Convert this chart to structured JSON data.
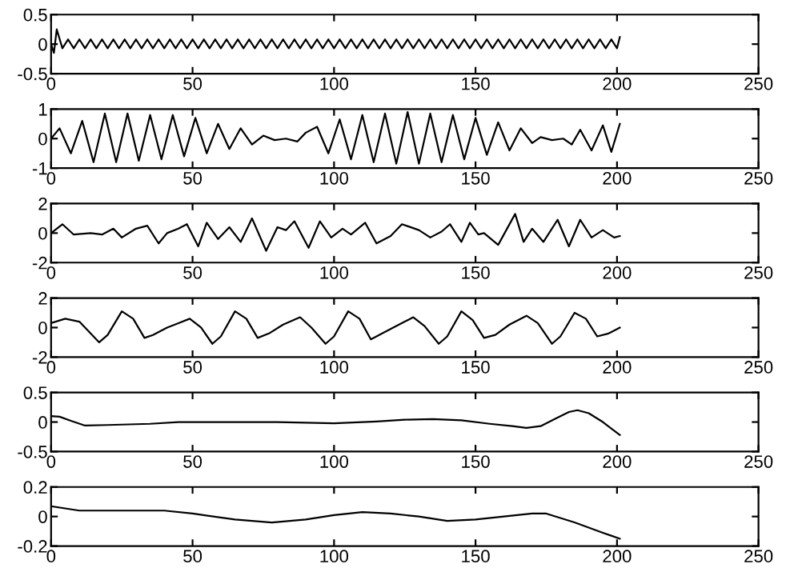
{
  "chart_data": [
    {
      "type": "line",
      "xlim": [
        0,
        250
      ],
      "xticks": [
        0,
        50,
        100,
        150,
        200,
        250
      ],
      "ylim": [
        -0.5,
        0.5
      ],
      "yticks": [
        -0.5,
        0,
        0.5
      ],
      "series": [
        {
          "color": "#000000",
          "x": [
            0,
            1,
            2,
            4,
            6,
            8,
            10,
            12,
            14,
            16,
            18,
            20,
            22,
            24,
            26,
            28,
            30,
            32,
            34,
            36,
            38,
            40,
            42,
            44,
            46,
            48,
            50,
            52,
            54,
            56,
            58,
            60,
            62,
            64,
            66,
            68,
            70,
            72,
            74,
            76,
            78,
            80,
            82,
            84,
            86,
            88,
            90,
            92,
            94,
            96,
            98,
            100,
            102,
            104,
            106,
            108,
            110,
            112,
            114,
            116,
            118,
            120,
            122,
            124,
            126,
            128,
            130,
            132,
            134,
            136,
            138,
            140,
            142,
            144,
            146,
            148,
            150,
            152,
            154,
            156,
            158,
            160,
            162,
            164,
            166,
            168,
            170,
            172,
            174,
            176,
            178,
            180,
            182,
            184,
            186,
            188,
            190,
            192,
            194,
            196,
            198,
            200,
            201
          ],
          "values": [
            0,
            -0.15,
            0.25,
            -0.07,
            0.08,
            -0.07,
            0.08,
            -0.07,
            0.08,
            -0.07,
            0.08,
            -0.07,
            0.08,
            -0.07,
            0.08,
            -0.07,
            0.08,
            -0.07,
            0.08,
            -0.07,
            0.08,
            -0.07,
            0.08,
            -0.07,
            0.08,
            -0.07,
            0.08,
            -0.07,
            0.08,
            -0.07,
            0.08,
            -0.07,
            0.08,
            -0.07,
            0.08,
            -0.07,
            0.08,
            -0.07,
            0.08,
            -0.07,
            0.08,
            -0.07,
            0.08,
            -0.07,
            0.08,
            -0.07,
            0.08,
            -0.07,
            0.08,
            -0.07,
            0.08,
            -0.07,
            0.08,
            -0.07,
            0.08,
            -0.07,
            0.08,
            -0.07,
            0.08,
            -0.07,
            0.08,
            -0.07,
            0.08,
            -0.07,
            0.08,
            -0.07,
            0.08,
            -0.07,
            0.08,
            -0.07,
            0.08,
            -0.07,
            0.08,
            -0.07,
            0.08,
            -0.07,
            0.08,
            -0.07,
            0.08,
            -0.07,
            0.08,
            -0.07,
            0.08,
            -0.07,
            0.08,
            -0.07,
            0.08,
            -0.07,
            0.08,
            -0.07,
            0.08,
            -0.07,
            0.08,
            -0.07,
            0.08,
            -0.07,
            0.08,
            -0.07,
            0.08,
            -0.07,
            0.08,
            -0.07,
            0.12
          ]
        }
      ]
    },
    {
      "type": "line",
      "xlim": [
        0,
        250
      ],
      "xticks": [
        0,
        50,
        100,
        150,
        200,
        250
      ],
      "ylim": [
        -1,
        1
      ],
      "yticks": [
        -1,
        0,
        1
      ],
      "series": [
        {
          "color": "#000000",
          "x": [
            0,
            3,
            7,
            11,
            15,
            19,
            23,
            27,
            31,
            35,
            39,
            43,
            47,
            51,
            55,
            59,
            63,
            67,
            71,
            75,
            79,
            83,
            87,
            90,
            94,
            98,
            102,
            106,
            110,
            114,
            118,
            122,
            126,
            130,
            134,
            138,
            142,
            146,
            150,
            154,
            158,
            162,
            166,
            170,
            173,
            177,
            181,
            184,
            187,
            191,
            195,
            198,
            201
          ],
          "values": [
            0,
            0.35,
            -0.5,
            0.6,
            -0.8,
            0.85,
            -0.8,
            0.85,
            -0.75,
            0.8,
            -0.7,
            0.8,
            -0.6,
            0.7,
            -0.5,
            0.5,
            -0.35,
            0.35,
            -0.2,
            0.1,
            -0.05,
            0,
            -0.1,
            0.2,
            0.4,
            -0.5,
            0.65,
            -0.7,
            0.8,
            -0.8,
            0.85,
            -0.85,
            0.9,
            -0.85,
            0.85,
            -0.8,
            0.8,
            -0.7,
            0.7,
            -0.55,
            0.55,
            -0.4,
            0.35,
            -0.15,
            0.05,
            -0.05,
            0,
            -0.2,
            0.3,
            -0.4,
            0.45,
            -0.45,
            0.5
          ]
        }
      ]
    },
    {
      "type": "line",
      "xlim": [
        0,
        250
      ],
      "xticks": [
        0,
        50,
        100,
        150,
        200,
        250
      ],
      "ylim": [
        -2,
        2
      ],
      "yticks": [
        -2,
        0,
        2
      ],
      "series": [
        {
          "color": "#000000",
          "x": [
            0,
            4,
            8,
            14,
            18,
            22,
            25,
            30,
            34,
            38,
            41,
            45,
            48,
            52,
            55,
            59,
            63,
            67,
            71,
            76,
            80,
            83,
            86,
            91,
            95,
            99,
            103,
            106,
            111,
            115,
            120,
            124,
            130,
            134,
            138,
            141,
            145,
            148,
            151,
            153,
            158,
            164,
            167,
            170,
            174,
            179,
            183,
            187,
            191,
            195,
            199,
            201
          ],
          "values": [
            0,
            0.6,
            -0.1,
            0,
            -0.1,
            0.3,
            -0.3,
            0.3,
            0.5,
            -0.7,
            0,
            0.3,
            0.6,
            -0.9,
            0.7,
            -0.4,
            0.4,
            -0.6,
            1.0,
            -1.2,
            0.4,
            0.2,
            0.8,
            -1.0,
            0.8,
            -0.3,
            0.3,
            -0.1,
            0.7,
            -0.7,
            -0.2,
            0.6,
            0.2,
            -0.3,
            0.1,
            0.6,
            -0.6,
            0.7,
            -0.1,
            0,
            -0.8,
            1.3,
            -0.6,
            0.3,
            -0.6,
            0.9,
            -0.9,
            0.9,
            -0.3,
            0.2,
            -0.3,
            -0.2
          ]
        }
      ]
    },
    {
      "type": "line",
      "xlim": [
        0,
        250
      ],
      "xticks": [
        0,
        50,
        100,
        150,
        200,
        250
      ],
      "ylim": [
        -2,
        2
      ],
      "yticks": [
        -2,
        0,
        2
      ],
      "series": [
        {
          "color": "#000000",
          "x": [
            0,
            5,
            10,
            17,
            20,
            25,
            29,
            33,
            36,
            41,
            45,
            49,
            53,
            57,
            60,
            65,
            69,
            73,
            77,
            82,
            88,
            92,
            97,
            100,
            105,
            109,
            113,
            117,
            122,
            128,
            132,
            137,
            140,
            145,
            149,
            153,
            157,
            162,
            168,
            172,
            177,
            180,
            185,
            189,
            193,
            197,
            201
          ],
          "values": [
            0.3,
            0.6,
            0.4,
            -1.0,
            -0.5,
            1.1,
            0.6,
            -0.7,
            -0.5,
            0,
            0.3,
            0.6,
            0,
            -1.1,
            -0.6,
            1.1,
            0.6,
            -0.7,
            -0.4,
            0.2,
            0.7,
            0,
            -1.1,
            -0.6,
            1.1,
            0.6,
            -0.8,
            -0.4,
            0.1,
            0.7,
            0.1,
            -1.1,
            -0.6,
            1.1,
            0.5,
            -0.7,
            -0.5,
            0.2,
            0.8,
            0.3,
            -1.1,
            -0.6,
            1.0,
            0.6,
            -0.6,
            -0.4,
            0
          ]
        }
      ]
    },
    {
      "type": "line",
      "xlim": [
        0,
        250
      ],
      "xticks": [
        0,
        50,
        100,
        150,
        200,
        250
      ],
      "ylim": [
        -0.5,
        0.5
      ],
      "yticks": [
        -0.5,
        0,
        0.5
      ],
      "series": [
        {
          "color": "#000000",
          "x": [
            0,
            3,
            7,
            12,
            20,
            35,
            45,
            80,
            100,
            115,
            125,
            135,
            145,
            155,
            163,
            168,
            173,
            178,
            183,
            186,
            190,
            195,
            201
          ],
          "values": [
            0.1,
            0.09,
            0.02,
            -0.06,
            -0.05,
            -0.03,
            0,
            0,
            -0.02,
            0.01,
            0.04,
            0.05,
            0.03,
            -0.03,
            -0.07,
            -0.1,
            -0.07,
            0.05,
            0.17,
            0.2,
            0.15,
            0,
            -0.22
          ]
        }
      ]
    },
    {
      "type": "line",
      "xlim": [
        0,
        250
      ],
      "xticks": [
        0,
        50,
        100,
        150,
        200,
        250
      ],
      "ylim": [
        -0.2,
        0.2
      ],
      "yticks": [
        -0.2,
        0,
        0.2
      ],
      "series": [
        {
          "color": "#000000",
          "x": [
            0,
            10,
            25,
            40,
            50,
            65,
            78,
            90,
            100,
            110,
            120,
            130,
            140,
            150,
            160,
            170,
            175,
            185,
            195,
            201
          ],
          "values": [
            0.07,
            0.04,
            0.04,
            0.04,
            0.02,
            -0.02,
            -0.04,
            -0.02,
            0.01,
            0.03,
            0.02,
            0,
            -0.03,
            -0.02,
            0,
            0.02,
            0.02,
            -0.04,
            -0.11,
            -0.15
          ]
        }
      ]
    }
  ]
}
